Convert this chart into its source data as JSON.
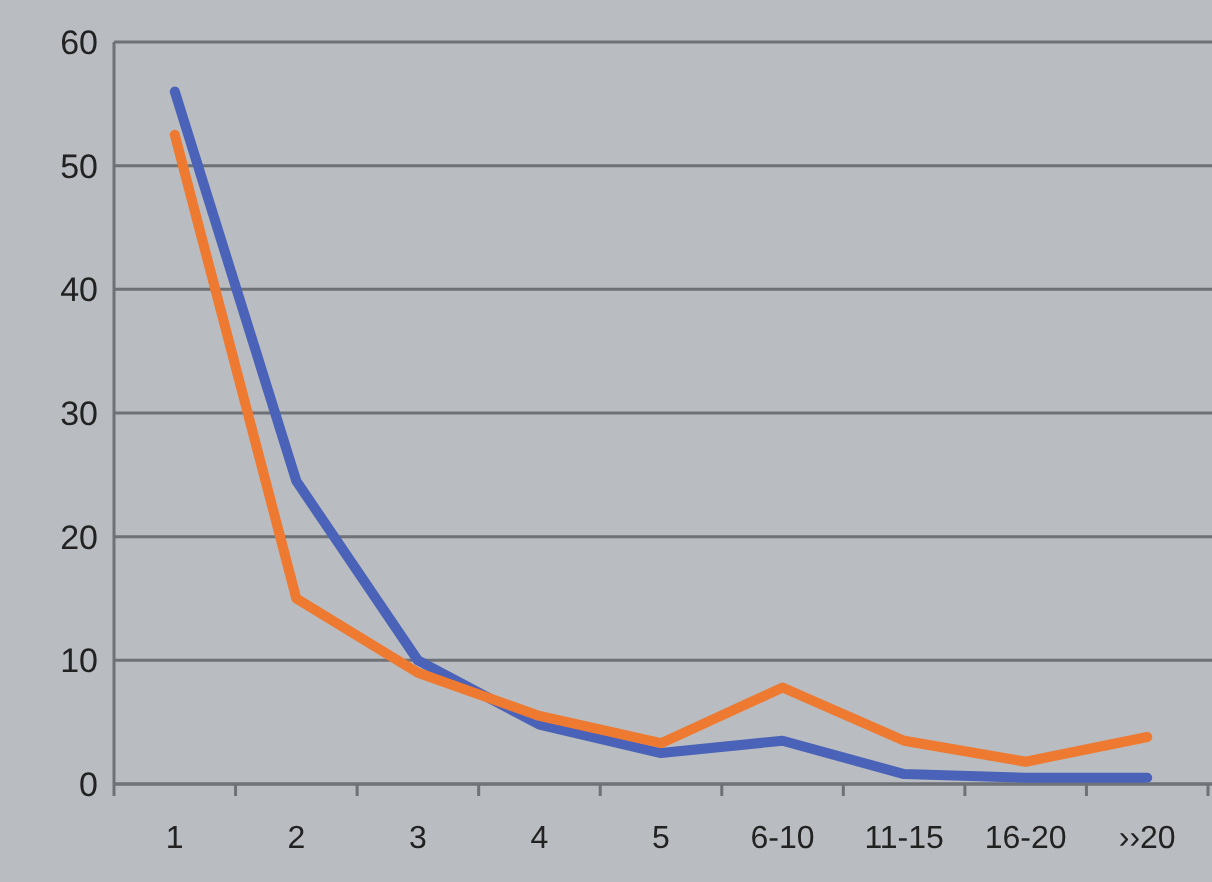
{
  "chart_data": {
    "type": "line",
    "categories": [
      "1",
      "2",
      "3",
      "4",
      "5",
      "6-10",
      "11-15",
      "16-20",
      "››20"
    ],
    "series": [
      {
        "color": "#4a62b8",
        "values": [
          56,
          24.5,
          10,
          4.8,
          2.5,
          3.5,
          0.8,
          0.5,
          0.5
        ]
      },
      {
        "color": "#ee7a32",
        "values": [
          52.5,
          15,
          9,
          5.5,
          3.3,
          7.8,
          3.5,
          1.8,
          3.8
        ]
      }
    ],
    "ylim": [
      0,
      60
    ],
    "yticks": [
      0,
      10,
      20,
      30,
      40,
      50,
      60
    ],
    "grid": "y",
    "marker": "none",
    "line_style": "solid"
  }
}
